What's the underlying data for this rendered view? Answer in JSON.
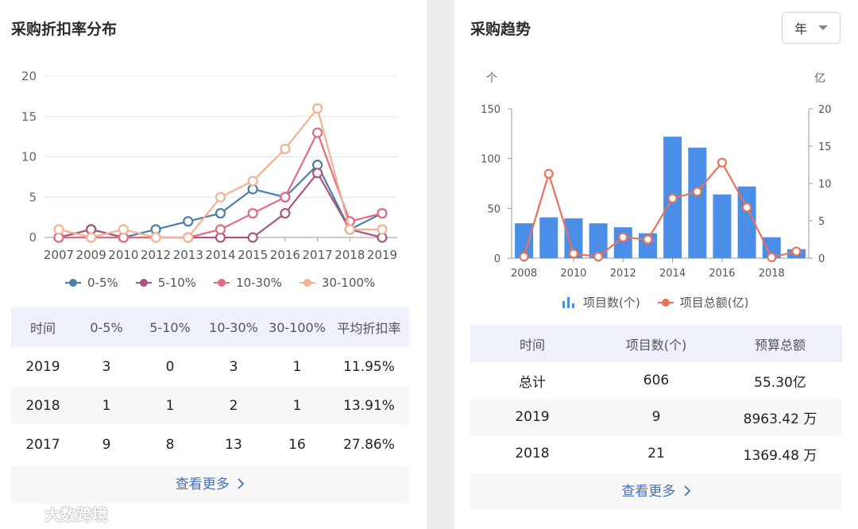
{
  "left": {
    "title": "采购折扣率分布",
    "table": {
      "headers": [
        "时间",
        "0-5%",
        "5-10%",
        "10-30%",
        "30-100%",
        "平均折扣率"
      ],
      "rows": [
        [
          "2019",
          "3",
          "0",
          "3",
          "1",
          "11.95%"
        ],
        [
          "2018",
          "1",
          "1",
          "2",
          "1",
          "13.91%"
        ],
        [
          "2017",
          "9",
          "8",
          "13",
          "16",
          "27.86%"
        ]
      ]
    },
    "more": "查看更多"
  },
  "right": {
    "title": "采购趋势",
    "select": {
      "value": "年"
    },
    "left_unit": "个",
    "right_unit": "亿",
    "legend_bar": "项目数(个)",
    "legend_line": "项目总额(亿)",
    "table": {
      "headers": [
        "时间",
        "项目数(个)",
        "预算总额"
      ],
      "rows": [
        [
          "总计",
          "606",
          "55.30亿"
        ],
        [
          "2019",
          "9",
          "8963.42 万"
        ],
        [
          "2018",
          "21",
          "1369.48 万"
        ]
      ]
    },
    "more": "查看更多"
  },
  "watermark": "大数跨境",
  "icons": {
    "chevron": "chevron-right-icon",
    "caret": "caret-down-icon",
    "bar_legend": "bar-chart-icon",
    "brand": "brand-logo-icon"
  },
  "chart_data": [
    {
      "type": "line",
      "categories": [
        "2007",
        "2009",
        "2010",
        "2012",
        "2013",
        "2014",
        "2015",
        "2016",
        "2017",
        "2018",
        "2019"
      ],
      "ylim": [
        0,
        20
      ],
      "yticks": [
        0,
        5,
        10,
        15,
        20
      ],
      "grid": true,
      "legend_position": "bottom",
      "series": [
        {
          "name": "0-5%",
          "color": "#4a7fa8",
          "values": [
            0,
            1,
            0,
            1,
            2,
            3,
            6,
            5,
            9,
            1,
            3
          ]
        },
        {
          "name": "5-10%",
          "color": "#a8567f",
          "values": [
            0,
            1,
            0,
            0,
            0,
            0,
            0,
            3,
            8,
            1,
            0
          ]
        },
        {
          "name": "10-30%",
          "color": "#e36a83",
          "values": [
            0,
            0,
            0,
            0,
            0,
            1,
            3,
            5,
            13,
            2,
            3
          ]
        },
        {
          "name": "30-100%",
          "color": "#f0b393",
          "values": [
            1,
            0,
            1,
            0,
            0,
            5,
            7,
            11,
            16,
            1,
            1
          ]
        }
      ]
    },
    {
      "type": "bar",
      "x": [
        2008,
        2009,
        2010,
        2011,
        2012,
        2013,
        2014,
        2015,
        2016,
        2017,
        2018,
        2019
      ],
      "xticks": [
        "2008",
        "2010",
        "2012",
        "2014",
        "2016",
        "2018"
      ],
      "ylim_left": [
        0,
        150
      ],
      "yticks_left": [
        0,
        50,
        100,
        150
      ],
      "ylim_right": [
        0,
        20
      ],
      "yticks_right": [
        0,
        5,
        10,
        15,
        20
      ],
      "legend_position": "bottom",
      "series": [
        {
          "name": "项目数(个)",
          "type": "bar",
          "axis": "left",
          "color": "#4a8ee8",
          "values": [
            35,
            41,
            40,
            35,
            31,
            25,
            122,
            111,
            64,
            72,
            21,
            9
          ]
        },
        {
          "name": "项目总额(亿)",
          "type": "line",
          "axis": "right",
          "color": "#e8735a",
          "values": [
            0.2,
            11.3,
            0.6,
            0.2,
            2.8,
            2.5,
            8.0,
            8.9,
            12.8,
            6.8,
            0.1,
            0.9
          ]
        }
      ]
    }
  ]
}
